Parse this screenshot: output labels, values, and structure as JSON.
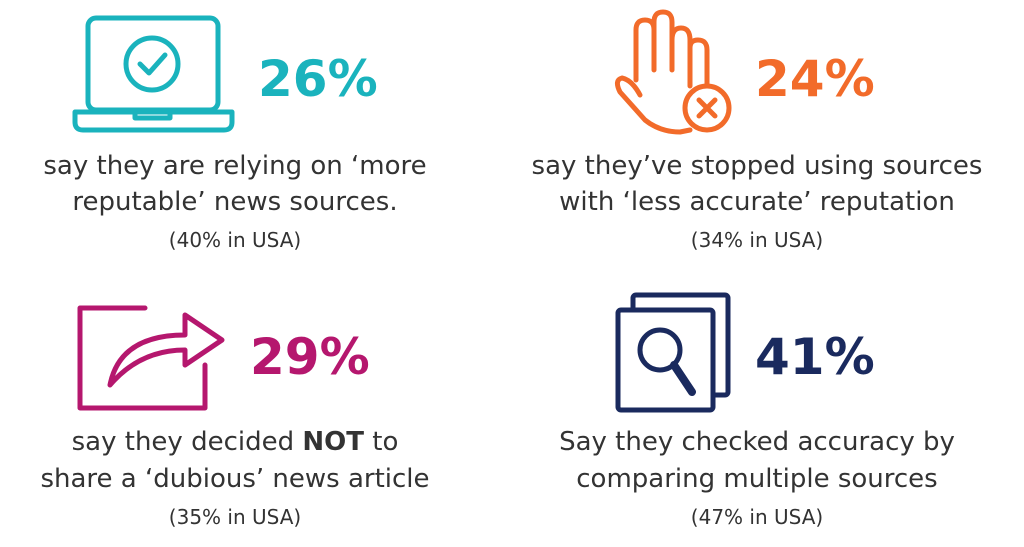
{
  "panels": [
    {
      "stat": "26%",
      "color": "#1ab3bd",
      "lines": [
        "say they are relying on ‘more",
        "reputable’ news sources."
      ],
      "note": "(40% in USA)"
    },
    {
      "stat": "24%",
      "color": "#f26b2a",
      "lines": [
        "say they’ve stopped using sources",
        "with ‘less accurate’ reputation"
      ],
      "note": "(34% in USA)"
    },
    {
      "stat": "29%",
      "color": "#b5176e",
      "lines": [
        [
          "say they decided ",
          "NOT",
          " to"
        ],
        "share a ‘dubious’ news article"
      ],
      "note": "(35% in USA)"
    },
    {
      "stat": "41%",
      "color": "#1a2a5e",
      "lines": [
        "Say they checked accuracy by",
        "comparing multiple sources"
      ],
      "note": "(47% in USA)"
    }
  ]
}
